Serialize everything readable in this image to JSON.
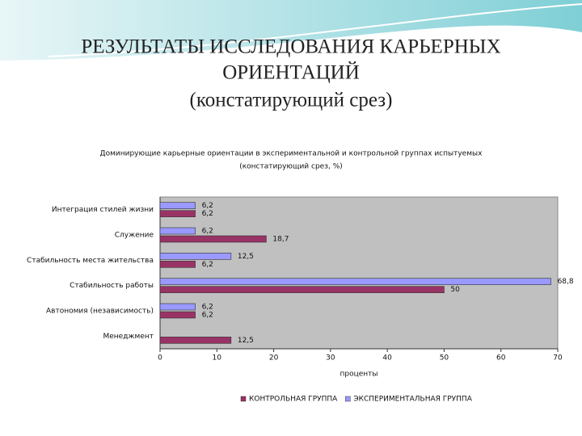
{
  "slide": {
    "title_lines": [
      "РЕЗУЛЬТАТЫ ИССЛЕДОВАНИЯ КАРЬЕРНЫХ",
      "ОРИЕНТАЦИЙ",
      "(констатирующий срез)"
    ]
  },
  "chart_data": {
    "type": "bar",
    "orientation": "horizontal",
    "title_lines": [
      "Доминирующие карьерные ориентации в экспериментальной и контрольной группах испытуемых",
      "(констатирующий срез, %)"
    ],
    "xlabel": "проценты",
    "categories": [
      "Интеграция стилей жизни",
      "Служение",
      "Стабильность места жительства",
      "Стабильность работы",
      "Автономия (независимость)",
      "Менеджмент"
    ],
    "series": [
      {
        "name": "КОНТРОЛЬНАЯ ГРУППА",
        "color": "#993366",
        "values": [
          6.2,
          18.7,
          6.2,
          50,
          6.2,
          12.5
        ],
        "value_labels": [
          "6,2",
          "18,7",
          "6,2",
          "50",
          "6,2",
          "12,5"
        ]
      },
      {
        "name": "ЭКСПЕРИМЕНТАЛЬНАЯ ГРУППА",
        "color": "#9999ff",
        "values": [
          6.2,
          6.2,
          12.5,
          68.8,
          6.2,
          null
        ],
        "value_labels": [
          "6,2",
          "6,2",
          "12,5",
          "68,8",
          "6,2",
          null
        ]
      }
    ],
    "xlim": [
      0,
      70
    ],
    "xticks": [
      0,
      10,
      20,
      30,
      40,
      50,
      60,
      70
    ],
    "plot_background": "#c0c0c0",
    "legend": "bottom"
  }
}
